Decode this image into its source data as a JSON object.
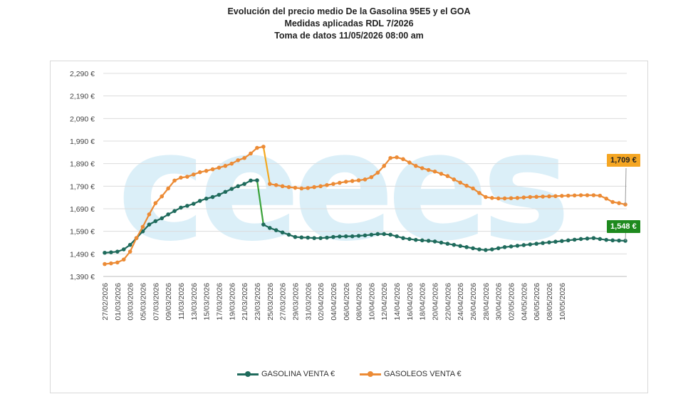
{
  "chart_data": {
    "type": "line",
    "title": "Evolución del precio medio De la Gasolina 95E5 y el GOA",
    "subtitle": "Medidas aplicadas RDL 7/2026",
    "subtitle2": "Toma de datos 11/05/2026 08:00 am",
    "watermark": "ceees",
    "ylim": [
      1.39,
      2.29
    ],
    "yticks": [
      1.39,
      1.49,
      1.59,
      1.69,
      1.79,
      1.89,
      1.99,
      2.09,
      2.19,
      2.29
    ],
    "ytick_labels": [
      "1,390 €",
      "1,490 €",
      "1,590 €",
      "1,690 €",
      "1,790 €",
      "1,890 €",
      "1,990 €",
      "2,090 €",
      "2,190 €",
      "2,290 €"
    ],
    "x_labels": [
      "27/02/2026",
      "01/03/2026",
      "03/03/2026",
      "05/03/2026",
      "07/03/2026",
      "09/03/2026",
      "11/03/2026",
      "13/03/2026",
      "15/03/2026",
      "17/03/2026",
      "19/03/2026",
      "21/03/2026",
      "23/03/2026",
      "25/03/2026",
      "27/03/2026",
      "29/03/2026",
      "31/03/2026",
      "02/04/2026",
      "04/04/2026",
      "06/04/2026",
      "08/04/2026",
      "10/04/2026",
      "12/04/2026",
      "14/04/2026",
      "16/04/2026",
      "18/04/2026",
      "20/04/2026",
      "22/04/2026",
      "24/04/2026",
      "26/04/2026",
      "28/04/2026",
      "30/04/2026",
      "02/05/2026",
      "04/05/2026",
      "06/05/2026",
      "08/05/2026",
      "10/05/2026"
    ],
    "grid": true,
    "legend_position": "bottom",
    "series": [
      {
        "name": "GASOLINA VENTA €",
        "color": "#1f6b5c",
        "segment_color": "#3aa23a",
        "values": [
          1.495,
          1.497,
          1.5,
          1.51,
          1.53,
          1.56,
          1.59,
          1.62,
          1.635,
          1.648,
          1.665,
          1.68,
          1.695,
          1.703,
          1.712,
          1.725,
          1.735,
          1.742,
          1.752,
          1.765,
          1.778,
          1.79,
          1.8,
          1.815,
          1.816,
          1.62,
          1.605,
          1.595,
          1.585,
          1.575,
          1.565,
          1.563,
          1.562,
          1.56,
          1.56,
          1.562,
          1.565,
          1.567,
          1.568,
          1.568,
          1.57,
          1.572,
          1.575,
          1.578,
          1.578,
          1.575,
          1.568,
          1.56,
          1.556,
          1.552,
          1.55,
          1.548,
          1.545,
          1.54,
          1.535,
          1.53,
          1.525,
          1.52,
          1.515,
          1.51,
          1.507,
          1.51,
          1.515,
          1.52,
          1.523,
          1.526,
          1.529,
          1.532,
          1.535,
          1.538,
          1.541,
          1.544,
          1.547,
          1.55,
          1.553,
          1.556,
          1.558,
          1.56,
          1.556,
          1.552,
          1.55,
          1.549,
          1.548
        ]
      },
      {
        "name": "GASOLEOS VENTA €",
        "color": "#ec8b35",
        "segment_color": "#f3a81f",
        "values": [
          1.445,
          1.448,
          1.452,
          1.465,
          1.5,
          1.56,
          1.61,
          1.665,
          1.715,
          1.745,
          1.78,
          1.815,
          1.828,
          1.832,
          1.842,
          1.852,
          1.858,
          1.865,
          1.872,
          1.88,
          1.89,
          1.905,
          1.915,
          1.935,
          1.96,
          1.965,
          1.8,
          1.795,
          1.79,
          1.786,
          1.783,
          1.78,
          1.782,
          1.786,
          1.79,
          1.795,
          1.8,
          1.805,
          1.81,
          1.813,
          1.816,
          1.82,
          1.83,
          1.85,
          1.88,
          1.915,
          1.918,
          1.91,
          1.895,
          1.88,
          1.87,
          1.862,
          1.855,
          1.845,
          1.835,
          1.82,
          1.806,
          1.792,
          1.78,
          1.76,
          1.742,
          1.738,
          1.736,
          1.736,
          1.737,
          1.738,
          1.74,
          1.742,
          1.743,
          1.744,
          1.745,
          1.746,
          1.747,
          1.748,
          1.749,
          1.75,
          1.75,
          1.75,
          1.748,
          1.735,
          1.72,
          1.715,
          1.709
        ]
      }
    ],
    "callouts": [
      {
        "label": "1,709 €",
        "series": 1,
        "bg": "#f5a623",
        "color": "#222222"
      },
      {
        "label": "1,548 €",
        "series": 0,
        "bg": "#1e8a1e",
        "color": "#ffffff"
      }
    ]
  }
}
